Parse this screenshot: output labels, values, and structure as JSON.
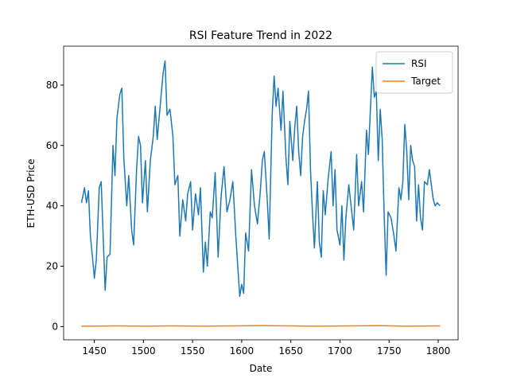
{
  "chart_data": {
    "type": "line",
    "title": "RSI Feature Trend in 2022",
    "x_label": "Date",
    "y_label": "ETH-USD Price",
    "xlim": [
      1418.75,
      1820.25
    ],
    "ylim": [
      -4.4,
      92.9
    ],
    "xticks": [
      1450,
      1500,
      1550,
      1600,
      1650,
      1700,
      1750,
      1800
    ],
    "yticks": [
      0,
      20,
      40,
      60,
      80
    ],
    "legend": "upper right",
    "series": [
      {
        "name": "RSI",
        "color": "#1f77b4",
        "x": [
          1437,
          1440,
          1442,
          1444,
          1446,
          1449,
          1450,
          1452,
          1455,
          1457,
          1459,
          1461,
          1463,
          1466,
          1469,
          1471,
          1473,
          1476,
          1478,
          1480,
          1483,
          1485,
          1488,
          1490,
          1493,
          1495,
          1497,
          1499,
          1502,
          1504,
          1507,
          1510,
          1512,
          1514,
          1517,
          1520,
          1522,
          1524,
          1527,
          1530,
          1532,
          1535,
          1537,
          1540,
          1543,
          1545,
          1548,
          1550,
          1553,
          1556,
          1558,
          1561,
          1563,
          1565,
          1568,
          1570,
          1573,
          1576,
          1579,
          1582,
          1585,
          1588,
          1591,
          1594,
          1596,
          1598,
          1600,
          1602,
          1604,
          1607,
          1610,
          1613,
          1616,
          1619,
          1621,
          1623,
          1626,
          1628,
          1631,
          1633,
          1635,
          1637,
          1640,
          1642,
          1645,
          1647,
          1649,
          1652,
          1654,
          1656,
          1658,
          1660,
          1662,
          1664,
          1666,
          1668,
          1670,
          1672,
          1674,
          1677,
          1679,
          1681,
          1683,
          1685,
          1688,
          1691,
          1693,
          1695,
          1697,
          1700,
          1702,
          1704,
          1706,
          1709,
          1712,
          1714,
          1717,
          1719,
          1722,
          1724,
          1727,
          1729,
          1731,
          1733,
          1735,
          1737,
          1739,
          1741,
          1743,
          1745,
          1747,
          1749,
          1752,
          1755,
          1757,
          1760,
          1762,
          1764,
          1766,
          1768,
          1770,
          1772,
          1774,
          1776,
          1778,
          1780,
          1782,
          1784,
          1786,
          1789,
          1791,
          1793,
          1795,
          1797,
          1799,
          1802
        ],
        "values": [
          41,
          46,
          41,
          45,
          30,
          20,
          16,
          22,
          46,
          48,
          30,
          12,
          23,
          24,
          60,
          50,
          69,
          77,
          79,
          56,
          40,
          50,
          32,
          27,
          52,
          63,
          60,
          41,
          55,
          38,
          55,
          63,
          73,
          62,
          73,
          84,
          88,
          70,
          72,
          63,
          47,
          50,
          30,
          42,
          35,
          44,
          48,
          32,
          44,
          37,
          46,
          18,
          28,
          20,
          38,
          36,
          51,
          23,
          43,
          53,
          38,
          42,
          48,
          30,
          20,
          10,
          14,
          11,
          31,
          25,
          52,
          40,
          34,
          45,
          55,
          58,
          42,
          29,
          70,
          83,
          73,
          79,
          65,
          78,
          56,
          47,
          68,
          55,
          66,
          73,
          58,
          50,
          63,
          68,
          72,
          78,
          52,
          38,
          26,
          48,
          28,
          23,
          45,
          37,
          49,
          58,
          40,
          52,
          32,
          27,
          40,
          22,
          36,
          47,
          38,
          32,
          57,
          40,
          48,
          38,
          65,
          57,
          72,
          86,
          76,
          78,
          55,
          72,
          62,
          37,
          17,
          38,
          36,
          30,
          25,
          46,
          42,
          48,
          67,
          58,
          42,
          60,
          55,
          53,
          35,
          47,
          36,
          32,
          48,
          47,
          52,
          47,
          42,
          40,
          41,
          40
        ]
      },
      {
        "name": "Target",
        "color": "#ff7f0e",
        "x": [
          1437,
          1470,
          1500,
          1530,
          1560,
          1590,
          1620,
          1650,
          1680,
          1710,
          1740,
          1770,
          1802
        ],
        "values": [
          0.1,
          0.2,
          0.1,
          0.2,
          0.1,
          0.2,
          0.3,
          0.2,
          0.1,
          0.2,
          0.3,
          0.1,
          0.2
        ]
      }
    ]
  }
}
